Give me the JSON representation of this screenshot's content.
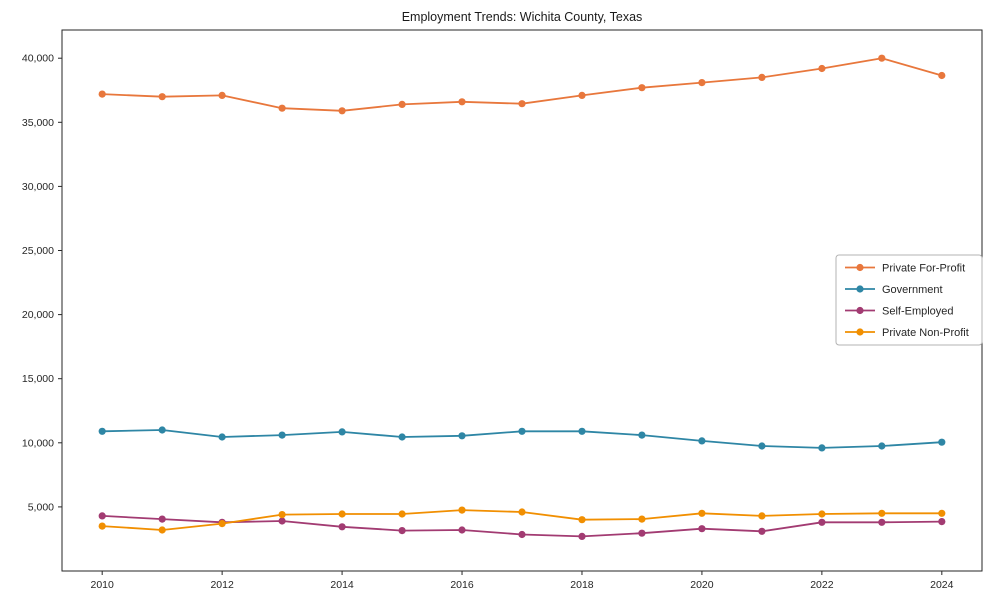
{
  "page": {
    "background": "#ffffff",
    "text_color": "#262626",
    "axis_color": "#262626",
    "legend_border_color": "#b3b3b3"
  },
  "chart_data": {
    "type": "line",
    "title": "Employment Trends: Wichita County, Texas",
    "xlabel": "",
    "ylabel": "",
    "grid": false,
    "legend_position": "center right",
    "x": [
      2010,
      2011,
      2012,
      2013,
      2014,
      2015,
      2016,
      2017,
      2018,
      2019,
      2020,
      2021,
      2022,
      2023,
      2024
    ],
    "x_tick_years": [
      2010,
      2012,
      2014,
      2016,
      2018,
      2020,
      2022,
      2024
    ],
    "x_tick_labels": [
      "2010",
      "2012",
      "2014",
      "2016",
      "2018",
      "2020",
      "2022",
      "2024"
    ],
    "y_ticks": [
      5000,
      10000,
      15000,
      20000,
      25000,
      30000,
      35000,
      40000
    ],
    "y_tick_labels": [
      "5,000",
      "10,000",
      "15,000",
      "20,000",
      "25,000",
      "30,000",
      "35,000",
      "40,000"
    ],
    "xlim": [
      2009.33,
      2024.67
    ],
    "ylim": [
      0,
      42200
    ],
    "series": [
      {
        "name": "Private For-Profit",
        "color": "#E8773C",
        "values": [
          37200,
          37000,
          37100,
          36100,
          35900,
          36400,
          36600,
          36450,
          37100,
          37700,
          38100,
          38500,
          39200,
          40000,
          38650
        ]
      },
      {
        "name": "Government",
        "color": "#2E86A5",
        "values": [
          10900,
          11000,
          10450,
          10600,
          10850,
          10450,
          10550,
          10900,
          10900,
          10600,
          10150,
          9750,
          9600,
          9750,
          10050
        ]
      },
      {
        "name": "Self-Employed",
        "color": "#A23B72",
        "values": [
          4300,
          4050,
          3800,
          3900,
          3450,
          3150,
          3200,
          2850,
          2700,
          2950,
          3300,
          3100,
          3800,
          3800,
          3850
        ]
      },
      {
        "name": "Private Non-Profit",
        "color": "#F18F01",
        "values": [
          3500,
          3200,
          3700,
          4400,
          4450,
          4450,
          4750,
          4600,
          4000,
          4050,
          4500,
          4300,
          4450,
          4500,
          4500
        ]
      }
    ]
  }
}
